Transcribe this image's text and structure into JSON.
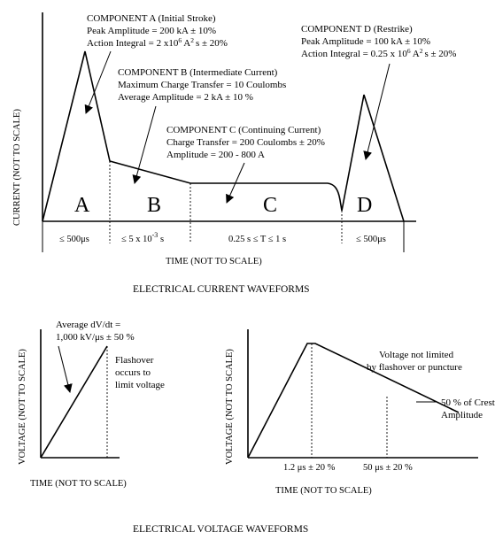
{
  "current": {
    "component_a": {
      "title": "COMPONENT A (Initial Stroke)",
      "line1": "Peak Amplitude = 200 kA ± 10%",
      "line2_pre": "Action Integral = 2 x10",
      "line2_exp": "6",
      "line2_post": " A",
      "line2_exp2": "2",
      "line2_tail": "s ± 20%"
    },
    "component_b": {
      "title": "COMPONENT B (Intermediate Current)",
      "line1": "Maximum Charge Transfer = 10 Coulombs",
      "line2": "Average Amplitude = 2 kA ± 10 %"
    },
    "component_c": {
      "title": "COMPONENT C (Continuing Current)",
      "line1": "Charge Transfer = 200 Coulombs ± 20%",
      "line2": "Amplitude = 200 - 800 A"
    },
    "component_d": {
      "title": "COMPONENT D (Restrike)",
      "line1": "Peak Amplitude = 100 kA ± 10%",
      "line2_pre": "Action Integral = 0.25 x 10",
      "line2_exp": "6",
      "line2_post": " A",
      "line2_exp2": "2",
      "line2_tail": "s ± 20%"
    },
    "region_letters": [
      "A",
      "B",
      "C",
      "D"
    ],
    "durations": {
      "a": "≤ 500μs",
      "b_pre": "≤ 5 x 10",
      "b_exp": "-3",
      "b_post": " s",
      "c": "0.25 s ≤ T ≤ 1 s",
      "d": "≤ 500μs"
    },
    "y_label": "CURRENT (NOT TO SCALE)",
    "x_label": "TIME (NOT TO SCALE)",
    "caption": "ELECTRICAL CURRENT WAVEFORMS"
  },
  "voltage_left": {
    "annot_line1": "Average dV/dt =",
    "annot_line2": "1,000 kV/μs  ± 50 %",
    "flash_line1": "Flashover",
    "flash_line2": "occurs to",
    "flash_line3": "limit voltage",
    "y_label": "VOLTAGE (NOT TO SCALE)",
    "x_label": "TIME (NOT TO SCALE)"
  },
  "voltage_right": {
    "note_line1": "Voltage not limited",
    "note_line2": "by flashover or puncture",
    "crest_line1": "50 % of Crest",
    "crest_line2": "Amplitude",
    "tick1": "1.2 μs ± 20 %",
    "tick2": "50 μs ± 20 %",
    "y_label": "VOLTAGE (NOT TO SCALE)",
    "x_label": "TIME (NOT TO SCALE)"
  },
  "voltage_caption": "ELECTRICAL VOLTAGE WAVEFORMS"
}
